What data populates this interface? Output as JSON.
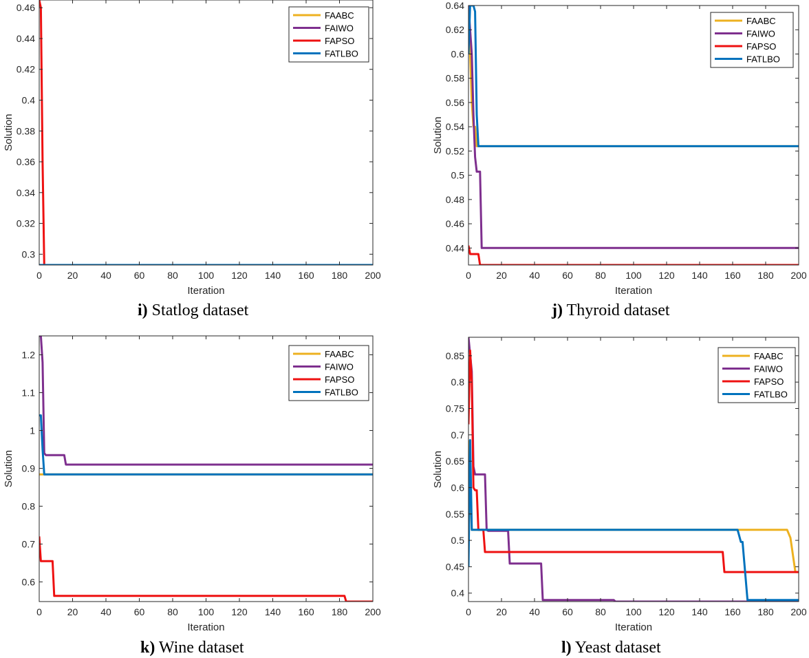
{
  "colors": {
    "FAABC": "#EDB120",
    "FAIWO": "#7E2F8E",
    "FAPSO": "#EE1111",
    "FATLBO": "#0072BD"
  },
  "chart_data": [
    {
      "type": "line",
      "caption": {
        "letter": "i)",
        "text": "Statlog dataset"
      },
      "xlabel": "Iteration",
      "ylabel": "Solution",
      "xlim": [
        0,
        200
      ],
      "ylim": [
        0.293,
        0.465
      ],
      "xticks": [
        0,
        20,
        40,
        60,
        80,
        100,
        120,
        140,
        160,
        180,
        200
      ],
      "yticks": [
        0.3,
        0.32,
        0.34,
        0.36,
        0.38,
        0.4,
        0.42,
        0.44,
        0.46
      ],
      "legend": "top-right",
      "series": [
        {
          "name": "FAABC",
          "points": [
            [
              0,
              0.293
            ],
            [
              200,
              0.293
            ]
          ]
        },
        {
          "name": "FAIWO",
          "points": [
            [
              0,
              0.293
            ],
            [
              200,
              0.293
            ]
          ]
        },
        {
          "name": "FAPSO",
          "points": [
            [
              0,
              0.465
            ],
            [
              1,
              0.46
            ],
            [
              2,
              0.36
            ],
            [
              3,
              0.293
            ],
            [
              200,
              0.293
            ]
          ]
        },
        {
          "name": "FATLBO",
          "points": [
            [
              0,
              0.293
            ],
            [
              200,
              0.293
            ]
          ]
        }
      ]
    },
    {
      "type": "line",
      "caption": {
        "letter": "j)",
        "text": "Thyroid dataset"
      },
      "xlabel": "Iteration",
      "ylabel": "Solution",
      "xlim": [
        0,
        200
      ],
      "ylim": [
        0.426,
        0.64
      ],
      "xticks": [
        0,
        20,
        40,
        60,
        80,
        100,
        120,
        140,
        160,
        180,
        200
      ],
      "yticks": [
        0.44,
        0.46,
        0.48,
        0.5,
        0.52,
        0.54,
        0.56,
        0.58,
        0.6,
        0.62,
        0.64
      ],
      "legend": "top-right",
      "series": [
        {
          "name": "FAABC",
          "points": [
            [
              0,
              0.64
            ],
            [
              1,
              0.6
            ],
            [
              2,
              0.56
            ],
            [
              3,
              0.54
            ],
            [
              4,
              0.54
            ],
            [
              5,
              0.524
            ],
            [
              200,
              0.524
            ]
          ]
        },
        {
          "name": "FAIWO",
          "points": [
            [
              0,
              0.64
            ],
            [
              2,
              0.6
            ],
            [
              3,
              0.55
            ],
            [
              4,
              0.515
            ],
            [
              5,
              0.503
            ],
            [
              7,
              0.503
            ],
            [
              8,
              0.44
            ],
            [
              200,
              0.44
            ]
          ]
        },
        {
          "name": "FAPSO",
          "points": [
            [
              0,
              0.442
            ],
            [
              1,
              0.435
            ],
            [
              6,
              0.435
            ],
            [
              7,
              0.426
            ],
            [
              200,
              0.426
            ]
          ]
        },
        {
          "name": "FATLBO",
          "points": [
            [
              0,
              0.6
            ],
            [
              1,
              0.64
            ],
            [
              3,
              0.64
            ],
            [
              4,
              0.635
            ],
            [
              5,
              0.55
            ],
            [
              6,
              0.524
            ],
            [
              200,
              0.524
            ]
          ]
        }
      ]
    },
    {
      "type": "line",
      "caption": {
        "letter": "k)",
        "text": "Wine dataset"
      },
      "xlabel": "Iteration",
      "ylabel": "Solution",
      "xlim": [
        0,
        200
      ],
      "ylim": [
        0.548,
        1.25
      ],
      "xticks": [
        0,
        20,
        40,
        60,
        80,
        100,
        120,
        140,
        160,
        180,
        200
      ],
      "yticks": [
        0.6,
        0.7,
        0.8,
        0.9,
        1,
        1.1,
        1.2
      ],
      "legend": "top-right",
      "series": [
        {
          "name": "FAABC",
          "points": [
            [
              0,
              0.884
            ],
            [
              200,
              0.884
            ]
          ]
        },
        {
          "name": "FAIWO",
          "points": [
            [
              0,
              1.25
            ],
            [
              1,
              1.25
            ],
            [
              2,
              1.18
            ],
            [
              3,
              0.94
            ],
            [
              4,
              0.935
            ],
            [
              15,
              0.935
            ],
            [
              16,
              0.91
            ],
            [
              200,
              0.91
            ]
          ]
        },
        {
          "name": "FAPSO",
          "points": [
            [
              0,
              0.72
            ],
            [
              1,
              0.655
            ],
            [
              8,
              0.655
            ],
            [
              9,
              0.563
            ],
            [
              183,
              0.563
            ],
            [
              184,
              0.548
            ],
            [
              200,
              0.548
            ]
          ]
        },
        {
          "name": "FATLBO",
          "points": [
            [
              0,
              1.04
            ],
            [
              1,
              1.04
            ],
            [
              2,
              0.95
            ],
            [
              3,
              0.884
            ],
            [
              200,
              0.884
            ]
          ]
        }
      ]
    },
    {
      "type": "line",
      "caption": {
        "letter": "l)",
        "text": "Yeast dataset"
      },
      "xlabel": "Iteration",
      "ylabel": "Solution",
      "xlim": [
        0,
        200
      ],
      "ylim": [
        0.384,
        0.885
      ],
      "xticks": [
        0,
        20,
        40,
        60,
        80,
        100,
        120,
        140,
        160,
        180,
        200
      ],
      "yticks": [
        0.4,
        0.45,
        0.5,
        0.55,
        0.6,
        0.65,
        0.7,
        0.75,
        0.8,
        0.85
      ],
      "legend": "top-right",
      "series": [
        {
          "name": "FAABC",
          "points": [
            [
              0,
              0.69
            ],
            [
              2,
              0.52
            ],
            [
              193,
              0.52
            ],
            [
              195,
              0.505
            ],
            [
              198,
              0.44
            ],
            [
              200,
              0.44
            ]
          ]
        },
        {
          "name": "FAIWO",
          "points": [
            [
              0,
              0.885
            ],
            [
              2,
              0.82
            ],
            [
              3,
              0.64
            ],
            [
              4,
              0.625
            ],
            [
              10,
              0.625
            ],
            [
              11,
              0.52
            ],
            [
              12,
              0.518
            ],
            [
              24,
              0.518
            ],
            [
              25,
              0.456
            ],
            [
              44,
              0.456
            ],
            [
              45,
              0.387
            ],
            [
              88,
              0.387
            ],
            [
              89,
              0.384
            ],
            [
              200,
              0.384
            ]
          ]
        },
        {
          "name": "FAPSO",
          "points": [
            [
              0,
              0.72
            ],
            [
              1,
              0.86
            ],
            [
              2,
              0.8
            ],
            [
              3,
              0.6
            ],
            [
              4,
              0.595
            ],
            [
              5,
              0.595
            ],
            [
              6,
              0.52
            ],
            [
              9,
              0.52
            ],
            [
              10,
              0.478
            ],
            [
              154,
              0.478
            ],
            [
              155,
              0.44
            ],
            [
              200,
              0.44
            ]
          ]
        },
        {
          "name": "FATLBO",
          "points": [
            [
              0,
              0.45
            ],
            [
              1,
              0.69
            ],
            [
              2,
              0.52
            ],
            [
              163,
              0.52
            ],
            [
              165,
              0.497
            ],
            [
              166,
              0.497
            ],
            [
              169,
              0.387
            ],
            [
              200,
              0.387
            ]
          ]
        }
      ]
    }
  ]
}
